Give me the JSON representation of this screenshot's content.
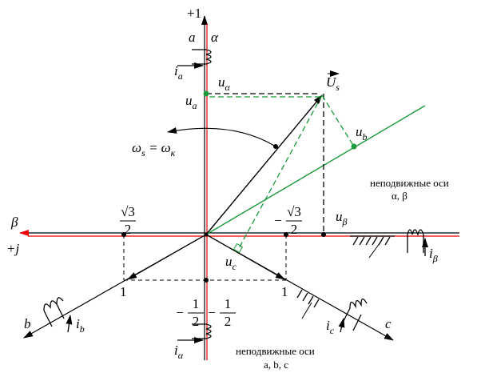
{
  "labels": [
    {
      "text": [
        "+1"
      ]
    },
    {
      "text": [
        "a"
      ]
    },
    {
      "text": [
        "α"
      ]
    },
    {
      "text": [
        "i",
        "a"
      ]
    },
    {
      "text": [
        "u",
        "α"
      ]
    },
    {
      "text": [
        "u",
        "a"
      ]
    },
    {
      "text": [
        "U",
        "s"
      ]
    },
    {
      "text": [
        "ω",
        "s",
        " = ω",
        "к"
      ]
    },
    {
      "text": [
        "u",
        "b"
      ]
    },
    {
      "text": [
        "неподвижные оси"
      ]
    },
    {
      "text": [
        "α, β"
      ]
    },
    {
      "text": [
        "β"
      ]
    },
    {
      "text": [
        "+j"
      ]
    },
    {
      "text": [
        "u",
        "β"
      ]
    },
    {
      "text": [
        "i",
        "β"
      ]
    },
    {
      "text": [
        "u",
        "c"
      ]
    },
    {
      "text": [
        "1"
      ]
    },
    {
      "text": [
        "1"
      ]
    },
    {
      "text": [
        "b"
      ]
    },
    {
      "text": [
        "i",
        "b"
      ]
    },
    {
      "text": [
        "i",
        "c"
      ]
    },
    {
      "text": [
        "c"
      ]
    },
    {
      "text": [
        "i",
        "α"
      ]
    },
    {
      "text": [
        "неподвижные оси"
      ]
    },
    {
      "text": [
        "a, b, c"
      ]
    }
  ],
  "fractions": [
    {
      "num": "√3",
      "den": "2"
    },
    {
      "sign": "−",
      "num": "√3",
      "den": "2"
    },
    {
      "sign": "−",
      "num": "1",
      "den": "2"
    },
    {
      "sign": "−",
      "num": "1",
      "den": "2"
    }
  ]
}
